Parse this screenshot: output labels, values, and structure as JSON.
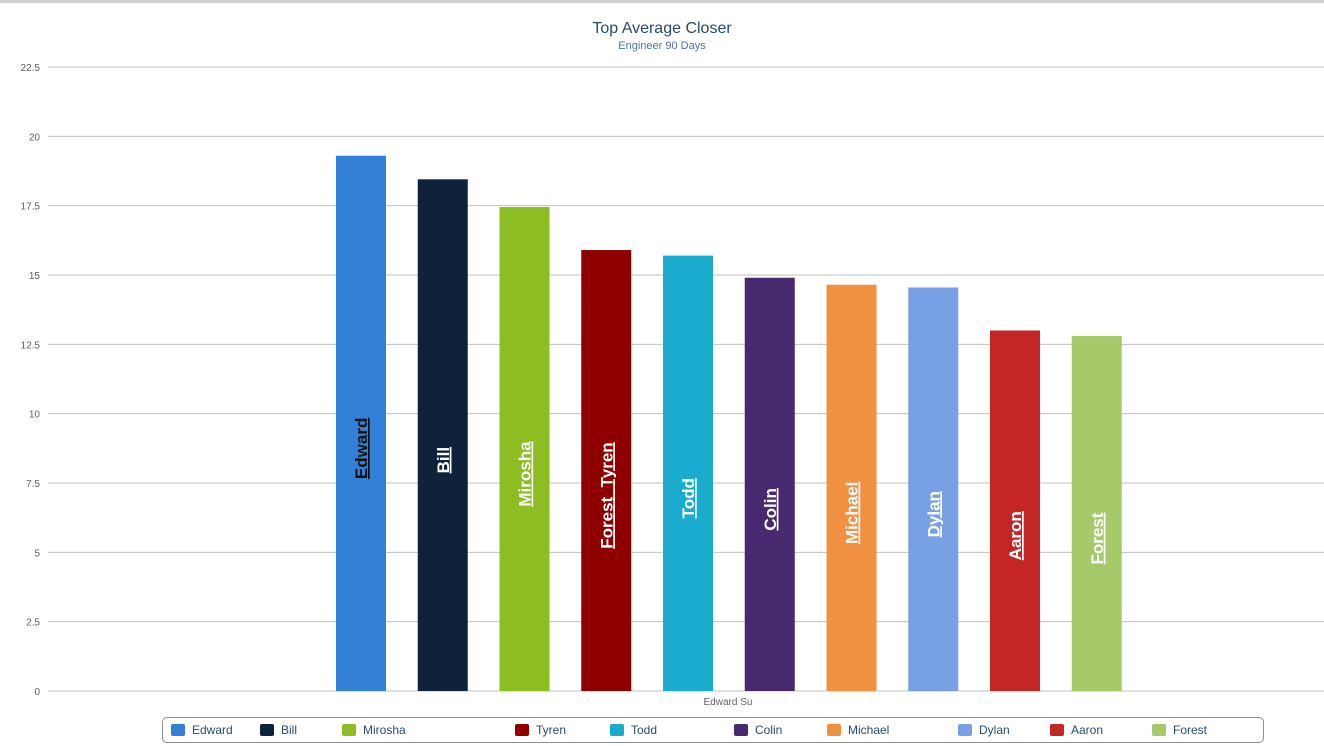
{
  "chart_data": {
    "type": "bar",
    "title": "Top Average Closer",
    "subtitle": "Engineer 90 Days",
    "xlabel": "Edward Su",
    "ylabel": "",
    "ylim": [
      0,
      22.5
    ],
    "yticks": [
      "0",
      "2.5",
      "5",
      "7.5",
      "10",
      "12.5",
      "15",
      "17.5",
      "20",
      "22.5"
    ],
    "grid": true,
    "legend_position": "bottom",
    "series": [
      {
        "name": "Edward",
        "value": 19.3,
        "color": "#3380d8",
        "label": "Edward",
        "label_color": "#111111"
      },
      {
        "name": "Bill",
        "value": 18.45,
        "color": "#0f223c",
        "label": "Bill",
        "label_color": "#ffffff"
      },
      {
        "name": "Mirosha",
        "value": 17.45,
        "color": "#8cbd22",
        "label": "Mirosha",
        "label_color": "#ffffff"
      },
      {
        "name": "Tyren",
        "value": 15.9,
        "color": "#8e0000",
        "label": "Forest  Tyren",
        "label_color": "#ffffff"
      },
      {
        "name": "Todd",
        "value": 15.7,
        "color": "#1aaccf",
        "label": "Todd",
        "label_color": "#ffffff"
      },
      {
        "name": "Colin",
        "value": 14.9,
        "color": "#48286f",
        "label": "Colin",
        "label_color": "#ffffff"
      },
      {
        "name": "Michael",
        "value": 14.65,
        "color": "#f29042",
        "label": "Michael",
        "label_color": "#ffffff"
      },
      {
        "name": "Dylan",
        "value": 14.55,
        "color": "#78a0e4",
        "label": "Dylan",
        "label_color": "#ffffff"
      },
      {
        "name": "Aaron",
        "value": 13.0,
        "color": "#c42525",
        "label": "Aaron",
        "label_color": "#ffffff"
      },
      {
        "name": "Forest",
        "value": 12.8,
        "color": "#a6c96a",
        "label": "Forest",
        "label_color": "#ffffff"
      }
    ]
  }
}
